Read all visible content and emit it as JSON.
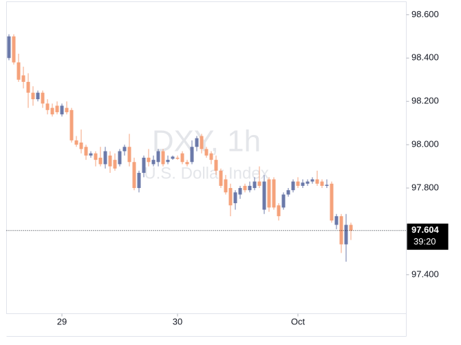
{
  "chart_data": {
    "type": "candlestick",
    "title": "DXY, 1h",
    "subtitle": "U.S. Dollar Index",
    "x": [
      0,
      1,
      2,
      3,
      4,
      5,
      6,
      7,
      8,
      9,
      10,
      11,
      12,
      13,
      14,
      15,
      16,
      17,
      18,
      19,
      20,
      21,
      22,
      23,
      24,
      25,
      26,
      27,
      28,
      29,
      30,
      31,
      32,
      33,
      34,
      35,
      36,
      37,
      38,
      39,
      40,
      41,
      42,
      43,
      44,
      45,
      46,
      47,
      48,
      49,
      50,
      51,
      52,
      53,
      54,
      55,
      56,
      57,
      58,
      59,
      60,
      61,
      62,
      63,
      64,
      65,
      66,
      67,
      68,
      69,
      70,
      71
    ],
    "open": [
      98.4,
      98.5,
      98.38,
      98.32,
      98.29,
      98.24,
      98.21,
      98.24,
      98.19,
      98.17,
      98.18,
      98.14,
      98.17,
      98.16,
      98.02,
      98.01,
      97.99,
      97.95,
      97.96,
      97.94,
      97.91,
      97.95,
      97.93,
      97.91,
      97.97,
      97.99,
      97.92,
      97.8,
      97.87,
      97.94,
      97.91,
      97.92,
      97.97,
      97.92,
      97.935,
      97.94,
      97.96,
      97.92,
      97.92,
      97.99,
      98.04,
      97.98,
      97.96,
      97.93,
      97.88,
      97.84,
      97.8,
      97.73,
      97.77,
      97.81,
      97.79,
      97.8,
      97.83,
      97.7,
      97.84,
      97.84,
      97.72,
      97.71,
      97.77,
      97.79,
      97.83,
      97.81,
      97.82,
      97.83,
      97.84,
      97.83,
      97.81,
      97.82,
      97.63,
      97.67,
      97.54,
      97.63
    ],
    "high": [
      98.51,
      98.51,
      98.42,
      98.36,
      98.33,
      98.27,
      98.25,
      98.25,
      98.21,
      98.19,
      98.2,
      98.19,
      98.2,
      98.17,
      98.04,
      98.07,
      98.0,
      97.97,
      97.97,
      97.99,
      97.99,
      97.97,
      97.96,
      97.98,
      98.0,
      98.05,
      97.94,
      97.88,
      97.95,
      97.98,
      97.95,
      97.98,
      97.98,
      97.95,
      97.95,
      97.95,
      97.97,
      97.93,
      98.02,
      98.04,
      98.05,
      97.99,
      97.97,
      97.95,
      97.89,
      97.86,
      97.82,
      97.79,
      97.81,
      97.82,
      97.83,
      97.85,
      97.9,
      97.86,
      97.85,
      97.85,
      97.73,
      97.78,
      97.8,
      97.84,
      97.85,
      97.84,
      97.84,
      97.85,
      97.88,
      97.84,
      97.84,
      97.83,
      97.68,
      97.68,
      97.68,
      97.64
    ],
    "low": [
      98.39,
      98.37,
      98.29,
      98.26,
      98.17,
      98.18,
      98.2,
      98.17,
      98.14,
      98.13,
      98.14,
      98.13,
      98.14,
      98.01,
      97.99,
      97.96,
      97.93,
      97.94,
      97.9,
      97.9,
      97.89,
      97.87,
      97.88,
      97.9,
      97.95,
      97.9,
      97.79,
      97.78,
      97.85,
      97.9,
      97.9,
      97.9,
      97.9,
      97.91,
      97.93,
      97.93,
      97.91,
      97.9,
      97.91,
      97.97,
      97.96,
      97.94,
      97.91,
      97.86,
      97.8,
      97.77,
      97.67,
      97.7,
      97.75,
      97.78,
      97.78,
      97.79,
      97.8,
      97.68,
      97.69,
      97.7,
      97.65,
      97.7,
      97.76,
      97.78,
      97.8,
      97.8,
      97.81,
      97.82,
      97.81,
      97.8,
      97.8,
      97.64,
      97.61,
      97.5,
      97.46,
      97.56
    ],
    "close": [
      98.5,
      98.38,
      98.3,
      98.29,
      98.24,
      98.21,
      98.24,
      98.19,
      98.16,
      98.14,
      98.15,
      98.18,
      98.15,
      98.02,
      98.0,
      97.98,
      97.95,
      97.96,
      97.93,
      97.91,
      97.97,
      97.9,
      97.89,
      97.97,
      97.99,
      97.92,
      97.8,
      97.87,
      97.94,
      97.92,
      97.93,
      97.97,
      97.91,
      97.93,
      97.945,
      97.935,
      97.92,
      97.91,
      97.99,
      98.03,
      97.98,
      97.95,
      97.93,
      97.88,
      97.81,
      97.78,
      97.72,
      97.78,
      97.8,
      97.79,
      97.81,
      97.83,
      97.81,
      97.83,
      97.71,
      97.71,
      97.67,
      97.77,
      97.79,
      97.83,
      97.81,
      97.825,
      97.83,
      97.84,
      97.82,
      97.81,
      97.815,
      97.65,
      97.67,
      97.54,
      97.63,
      97.604
    ],
    "up_color": "#6b79a9",
    "down_color": "#f5a27b",
    "xlim": [
      -0.5,
      82.5
    ],
    "xticks": [
      {
        "value": 11,
        "label": "29"
      },
      {
        "value": 35,
        "label": "30"
      },
      {
        "value": 60,
        "label": "Oct"
      }
    ],
    "ylim": [
      97.22,
      98.66
    ],
    "yticks": [
      {
        "value": 98.6,
        "label": "98.600"
      },
      {
        "value": 98.4,
        "label": "98.400"
      },
      {
        "value": 98.2,
        "label": "98.200"
      },
      {
        "value": 98.0,
        "label": "98.000"
      },
      {
        "value": 97.8,
        "label": "97.800"
      },
      {
        "value": 97.4,
        "label": "97.400"
      }
    ],
    "countdown": "39:20"
  }
}
